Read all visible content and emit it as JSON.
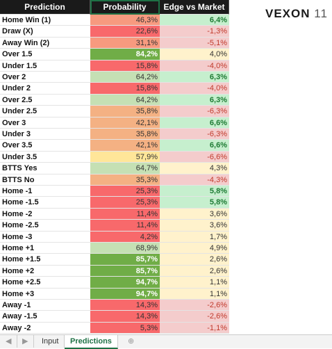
{
  "header": {
    "prediction": "Prediction",
    "probability": "Probability",
    "edge": "Edge vs Market"
  },
  "logo": {
    "name": "VEXON",
    "number": "11"
  },
  "rows": [
    {
      "label": "Home Win (1)",
      "probability": "46,3%",
      "probability_fill": "salmon",
      "edge": "6,4%",
      "edge_fill": "mint"
    },
    {
      "label": "Draw (X)",
      "probability": "22,6%",
      "probability_fill": "red",
      "edge": "-1,3%",
      "edge_fill": "pink"
    },
    {
      "label": "Away Win (2)",
      "probability": "31,1%",
      "probability_fill": "salmon",
      "edge": "-5,1%",
      "edge_fill": "pink"
    },
    {
      "label": "Over 1.5",
      "probability": "84,2%",
      "probability_fill": "green",
      "edge": "4,0%",
      "edge_fill": "cream"
    },
    {
      "label": "Under 1.5",
      "probability": "15,8%",
      "probability_fill": "red",
      "edge": "-4,0%",
      "edge_fill": "pink"
    },
    {
      "label": "Over 2",
      "probability": "64,2%",
      "probability_fill": "lightgreen",
      "edge": "6,3%",
      "edge_fill": "mint"
    },
    {
      "label": "Under 2",
      "probability": "15,8%",
      "probability_fill": "red",
      "edge": "-4,0%",
      "edge_fill": "pink"
    },
    {
      "label": "Over 2.5",
      "probability": "64,2%",
      "probability_fill": "lightgreen",
      "edge": "6,3%",
      "edge_fill": "mint"
    },
    {
      "label": "Under 2.5",
      "probability": "35,8%",
      "probability_fill": "orange",
      "edge": "-6,3%",
      "edge_fill": "pink"
    },
    {
      "label": "Over 3",
      "probability": "42,1%",
      "probability_fill": "orange",
      "edge": "6,6%",
      "edge_fill": "mint"
    },
    {
      "label": "Under 3",
      "probability": "35,8%",
      "probability_fill": "orange",
      "edge": "-6,3%",
      "edge_fill": "pink"
    },
    {
      "label": "Over 3.5",
      "probability": "42,1%",
      "probability_fill": "orange",
      "edge": "6,6%",
      "edge_fill": "mint"
    },
    {
      "label": "Under 3.5",
      "probability": "57,9%",
      "probability_fill": "yellow",
      "edge": "-6,6%",
      "edge_fill": "pink"
    },
    {
      "label": "BTTS Yes",
      "probability": "64,7%",
      "probability_fill": "lightgreen",
      "edge": "4,3%",
      "edge_fill": "cream"
    },
    {
      "label": "BTTS No",
      "probability": "35,3%",
      "probability_fill": "orange",
      "edge": "-4,3%",
      "edge_fill": "pink"
    },
    {
      "label": "Home -1",
      "probability": "25,3%",
      "probability_fill": "red",
      "edge": "5,8%",
      "edge_fill": "mint"
    },
    {
      "label": "Home -1.5",
      "probability": "25,3%",
      "probability_fill": "red",
      "edge": "5,8%",
      "edge_fill": "mint"
    },
    {
      "label": "Home -2",
      "probability": "11,4%",
      "probability_fill": "red",
      "edge": "3,6%",
      "edge_fill": "cream"
    },
    {
      "label": "Home -2.5",
      "probability": "11,4%",
      "probability_fill": "red",
      "edge": "3,6%",
      "edge_fill": "cream"
    },
    {
      "label": "Home -3",
      "probability": "4,2%",
      "probability_fill": "red",
      "edge": "1,7%",
      "edge_fill": "cream"
    },
    {
      "label": "Home +1",
      "probability": "68,9%",
      "probability_fill": "lightgreen",
      "edge": "4,9%",
      "edge_fill": "cream"
    },
    {
      "label": "Home +1.5",
      "probability": "85,7%",
      "probability_fill": "green",
      "edge": "2,6%",
      "edge_fill": "cream"
    },
    {
      "label": "Home +2",
      "probability": "85,7%",
      "probability_fill": "green",
      "edge": "2,6%",
      "edge_fill": "cream"
    },
    {
      "label": "Home +2.5",
      "probability": "94,7%",
      "probability_fill": "green",
      "edge": "1,1%",
      "edge_fill": "cream"
    },
    {
      "label": "Home +3",
      "probability": "94,7%",
      "probability_fill": "green",
      "edge": "1,1%",
      "edge_fill": "cream"
    },
    {
      "label": "Away -1",
      "probability": "14,3%",
      "probability_fill": "red",
      "edge": "-2,6%",
      "edge_fill": "pink"
    },
    {
      "label": "Away -1.5",
      "probability": "14,3%",
      "probability_fill": "red",
      "edge": "-2,6%",
      "edge_fill": "pink"
    },
    {
      "label": "Away -2",
      "probability": "5,3%",
      "probability_fill": "red",
      "edge": "-1,1%",
      "edge_fill": "pink"
    }
  ],
  "tabs": [
    "Input",
    "Predictions"
  ],
  "active_tab": 1
}
